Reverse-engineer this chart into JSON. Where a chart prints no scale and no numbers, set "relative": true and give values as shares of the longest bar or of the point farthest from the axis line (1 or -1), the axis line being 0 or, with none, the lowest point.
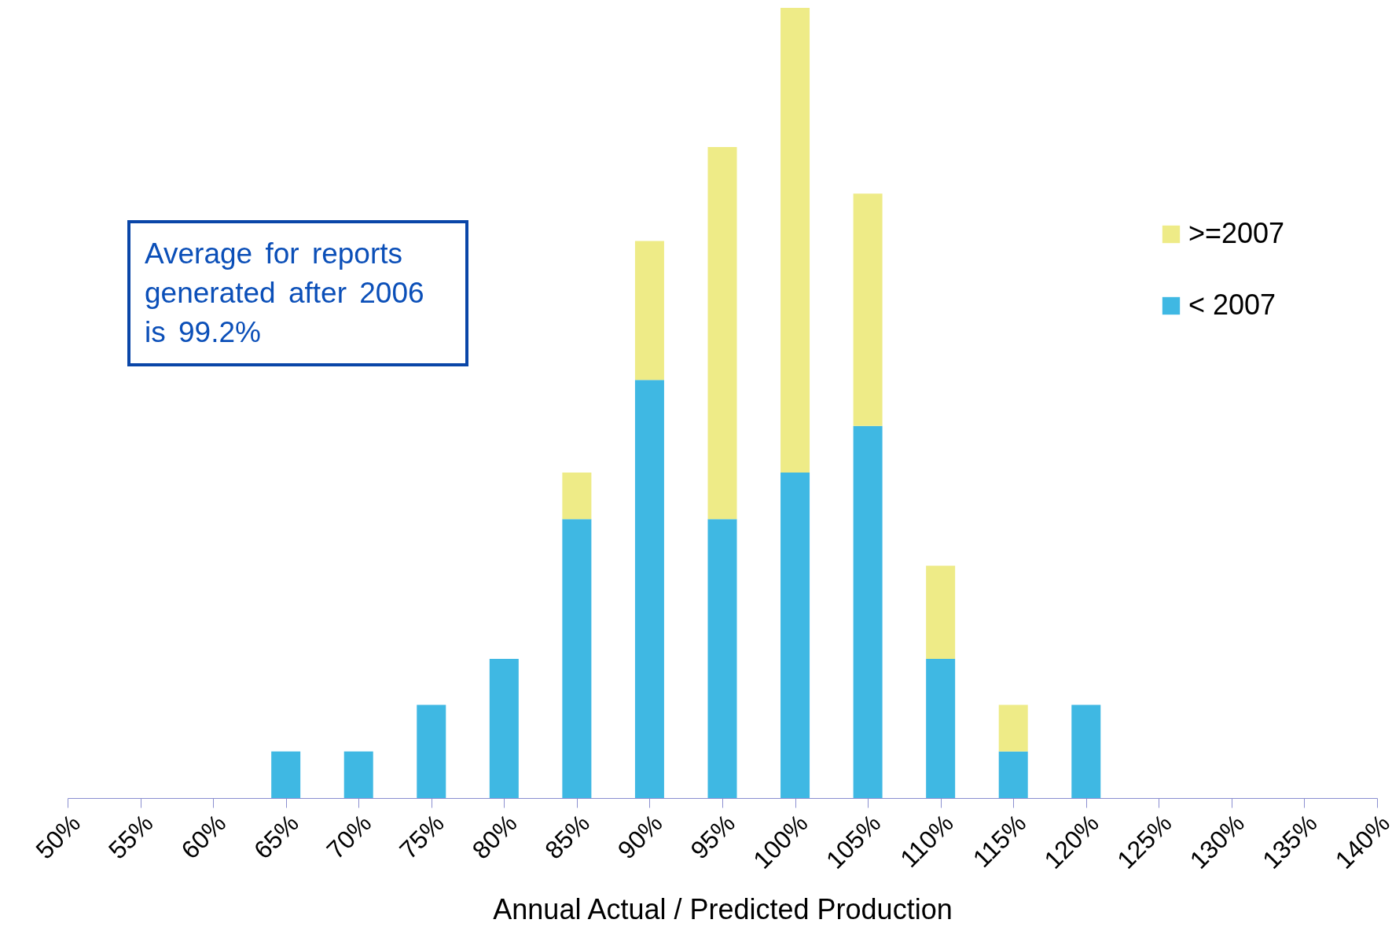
{
  "chart_data": {
    "type": "bar",
    "stacked": true,
    "relative": true,
    "xlabel": "Annual Actual / Predicted Production",
    "categories": [
      "50%",
      "55%",
      "60%",
      "65%",
      "70%",
      "75%",
      "80%",
      "85%",
      "90%",
      "95%",
      "100%",
      "105%",
      "110%",
      "115%",
      "120%",
      "125%",
      "130%",
      "135%",
      "140%"
    ],
    "series": [
      {
        "name": "< 2007",
        "color": "#3fb8e3",
        "values": [
          null,
          null,
          null,
          0.059,
          0.059,
          0.118,
          0.176,
          0.353,
          0.529,
          0.353,
          0.412,
          0.471,
          0.176,
          0.059,
          0.118,
          null,
          null,
          null,
          null
        ]
      },
      {
        "name": ">=2007",
        "color": "#eeeb87",
        "values": [
          null,
          null,
          null,
          null,
          null,
          null,
          null,
          0.059,
          0.176,
          0.471,
          0.588,
          0.294,
          0.118,
          0.059,
          null,
          null,
          null,
          null,
          null
        ]
      }
    ],
    "legend": "top right",
    "annotations": [
      "Average for reports generated after 2006 is 99.2%"
    ]
  }
}
